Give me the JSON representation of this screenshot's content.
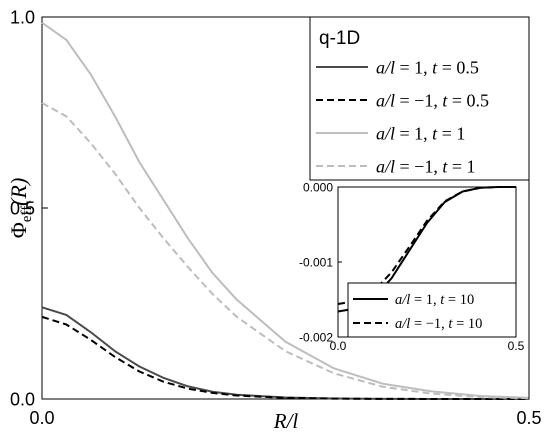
{
  "chart_data": [
    {
      "type": "line",
      "xlabel": "R/l",
      "ylabel_main": "Φ",
      "ylabel_sub": "eff",
      "ylabel_arg": "(R)",
      "xlim": [
        0,
        0.5
      ],
      "ylim": [
        0,
        1.0
      ],
      "xticks": [
        0.0,
        0.5
      ],
      "xtick_labels": [
        "0.0",
        "0.5"
      ],
      "yticks": [
        0.0,
        0.5,
        1.0
      ],
      "ytick_labels": [
        "0.0",
        "0.5",
        "1.0"
      ],
      "grid": false,
      "legend_position": "top-right",
      "legend_title": "q-1D",
      "x": [
        0.0,
        0.025,
        0.05,
        0.075,
        0.1,
        0.125,
        0.15,
        0.175,
        0.2,
        0.25,
        0.3,
        0.35,
        0.4,
        0.45,
        0.5
      ],
      "series": [
        {
          "name": "a/l = 1, t = 0.5",
          "legend": {
            "ratio": "a/l",
            "ratio_value": "= 1,",
            "t": "t",
            "t_value": "= 0.5"
          },
          "color": "#4a4a4a",
          "dash": "solid",
          "values": [
            0.24,
            0.22,
            0.175,
            0.125,
            0.085,
            0.055,
            0.033,
            0.019,
            0.011,
            0.004,
            0.0013,
            0.0004,
            0.0001,
            0.0,
            0.0
          ]
        },
        {
          "name": "a/l = −1, t = 0.5",
          "legend": {
            "ratio": "a/l",
            "ratio_value": "= −1,",
            "t": "t",
            "t_value": "= 0.5"
          },
          "color": "#000000",
          "dash": "dashed",
          "values": [
            0.215,
            0.195,
            0.155,
            0.11,
            0.072,
            0.045,
            0.027,
            0.016,
            0.009,
            0.003,
            0.001,
            0.0003,
            0.0001,
            0.0,
            0.0
          ]
        },
        {
          "name": "a/l = 1, t = 1",
          "legend": {
            "ratio": "a/l",
            "ratio_value": "= 1,",
            "t": "t",
            "t_value": "= 1"
          },
          "color": "#bdbdbd",
          "dash": "solid",
          "values": [
            0.985,
            0.94,
            0.85,
            0.74,
            0.62,
            0.52,
            0.42,
            0.33,
            0.26,
            0.15,
            0.08,
            0.04,
            0.02,
            0.008,
            0.003
          ]
        },
        {
          "name": "a/l = −1, t = 1",
          "legend": {
            "ratio": "a/l",
            "ratio_value": "= −1,",
            "t": "t",
            "t_value": "= 1"
          },
          "color": "#bdbdbd",
          "dash": "dashed",
          "values": [
            0.775,
            0.74,
            0.67,
            0.59,
            0.5,
            0.42,
            0.345,
            0.275,
            0.215,
            0.125,
            0.067,
            0.032,
            0.014,
            0.005,
            0.002
          ]
        }
      ]
    },
    {
      "type": "line",
      "inset": true,
      "xlim": [
        0,
        0.5
      ],
      "ylim": [
        -0.002,
        0.0
      ],
      "xticks": [
        0.0,
        0.5
      ],
      "xtick_labels": [
        "0.0",
        "0.5"
      ],
      "yticks": [
        -0.002,
        -0.001,
        0.0
      ],
      "ytick_labels": [
        "-0.002",
        "-0.001",
        "0.000"
      ],
      "grid": false,
      "legend_position": "bottom-right",
      "x": [
        0.0,
        0.05,
        0.1,
        0.15,
        0.2,
        0.25,
        0.3,
        0.35,
        0.4,
        0.45,
        0.5
      ],
      "series": [
        {
          "name": "a/l = 1, t = 10",
          "legend": {
            "ratio": "a/l",
            "ratio_value": "= 1,",
            "t": "t",
            "t_value": "= 10"
          },
          "color": "#000000",
          "dash": "solid",
          "values": [
            -0.00166,
            -0.00162,
            -0.00148,
            -0.00122,
            -0.00085,
            -0.00048,
            -0.0002,
            -6e-05,
            -1e-05,
            0.0,
            0.0
          ]
        },
        {
          "name": "a/l = −1, t = 10",
          "legend": {
            "ratio": "a/l",
            "ratio_value": "= −1,",
            "t": "t",
            "t_value": "= 10"
          },
          "color": "#000000",
          "dash": "dashed",
          "values": [
            -0.00156,
            -0.00152,
            -0.00139,
            -0.00114,
            -0.0008,
            -0.00045,
            -0.00019,
            -6e-05,
            -1e-05,
            0.0,
            0.0
          ]
        }
      ]
    }
  ]
}
